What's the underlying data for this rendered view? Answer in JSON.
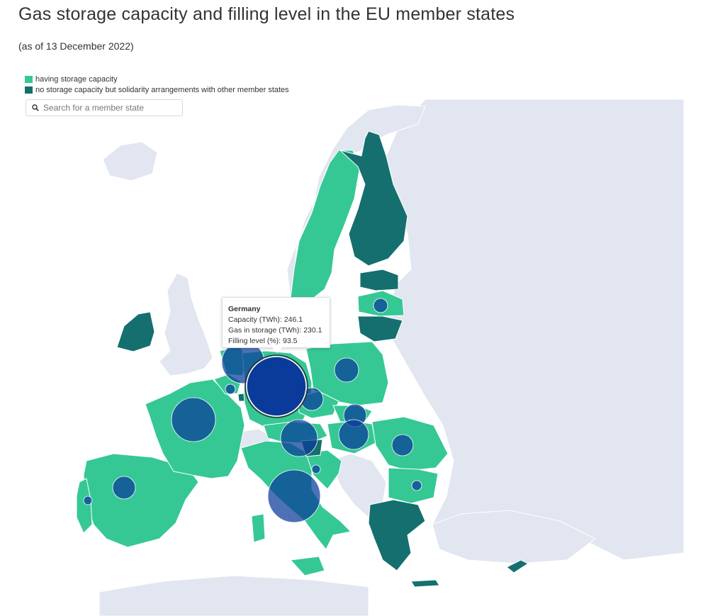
{
  "title": "Gas storage capacity and filling level in the EU member states",
  "subtitle": "(as of 13 December 2022)",
  "legend": [
    {
      "label": "having storage capacity",
      "color": "#35c895"
    },
    {
      "label": "no storage capacity but solidarity arrangements with other member states",
      "color": "#156f6f"
    }
  ],
  "search": {
    "placeholder": "Search for a member state",
    "icon": "search-icon"
  },
  "colors": {
    "having_storage": "#35c895",
    "no_storage": "#156f6f",
    "non_eu": "#e1e6f0",
    "bubble": "#0a3a9a"
  },
  "tooltip": {
    "country": "Germany",
    "line1": "Capacity (TWh): 246.1",
    "line2": "Gas in storage (TWh): 230.1",
    "line3": "Filling level (%): 93.5"
  }
}
